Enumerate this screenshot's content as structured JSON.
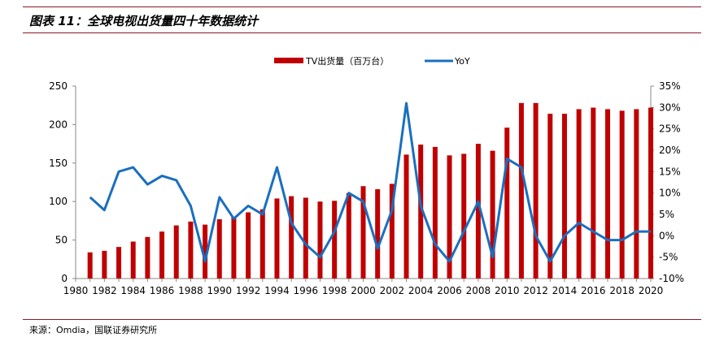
{
  "header": {
    "title": "图表 11：全球电视出货量四十年数据统计"
  },
  "footer": {
    "source": "来源：Omdia，国联证券研究所"
  },
  "colors": {
    "bar": "#c00000",
    "line": "#1a6fbf",
    "rule": "#8a1a2a",
    "axis": "#888888"
  },
  "chart_data": {
    "type": "bar",
    "x_start": 1980,
    "x_tick_labels": [
      "1980",
      "1982",
      "1984",
      "1986",
      "1988",
      "1990",
      "1992",
      "1994",
      "1996",
      "1998",
      "2000",
      "2002",
      "2004",
      "2006",
      "2008",
      "2010",
      "2012",
      "2014",
      "2016",
      "2018",
      "2020"
    ],
    "x": [
      1981,
      1982,
      1983,
      1984,
      1985,
      1986,
      1987,
      1988,
      1989,
      1990,
      1991,
      1992,
      1993,
      1994,
      1995,
      1996,
      1997,
      1998,
      1999,
      2000,
      2001,
      2002,
      2003,
      2004,
      2005,
      2006,
      2007,
      2008,
      2009,
      2010,
      2011,
      2012,
      2013,
      2014,
      2015,
      2016,
      2017,
      2018,
      2019,
      2020
    ],
    "ylim": [
      0,
      250
    ],
    "y_ticks": [
      "0",
      "50",
      "100",
      "150",
      "200",
      "250"
    ],
    "y2lim": [
      -10,
      35
    ],
    "y2_ticks": [
      "-10%",
      "-5%",
      "0%",
      "5%",
      "10%",
      "15%",
      "20%",
      "25%",
      "30%",
      "35%"
    ],
    "legend_position": "top",
    "series": [
      {
        "name": "TV出货量（百万台）",
        "type": "bar",
        "axis": "left",
        "values": [
          34,
          36,
          41,
          48,
          54,
          61,
          69,
          74,
          70,
          77,
          80,
          86,
          90,
          104,
          107,
          105,
          100,
          101,
          111,
          120,
          116,
          123,
          161,
          174,
          171,
          160,
          162,
          175,
          166,
          196,
          228,
          228,
          214,
          214,
          220,
          222,
          220,
          218,
          220,
          222
        ]
      },
      {
        "name": "YoY",
        "type": "line",
        "axis": "right",
        "values": [
          9,
          6,
          15,
          16,
          12,
          14,
          13,
          7,
          -6,
          9,
          4,
          7,
          5,
          16,
          3,
          -2,
          -5,
          1,
          10,
          8,
          -3,
          6,
          31,
          7,
          -2,
          -6,
          1,
          8,
          -5,
          18,
          16,
          0,
          -6,
          0,
          3,
          1,
          -1,
          -1,
          1,
          1
        ]
      }
    ]
  }
}
